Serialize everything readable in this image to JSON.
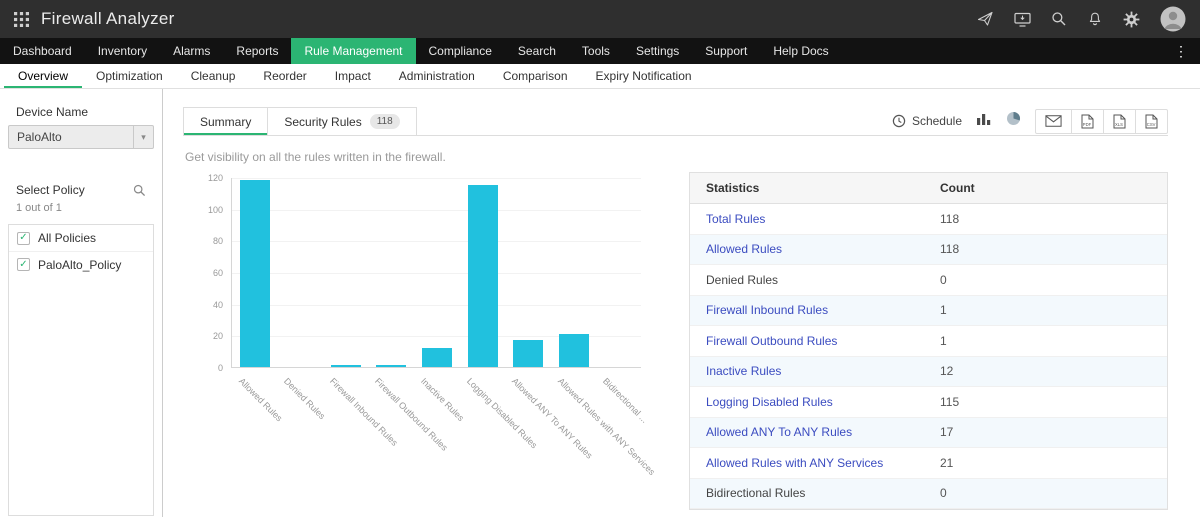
{
  "header": {
    "title": "Firewall Analyzer",
    "icons": [
      "app-launcher",
      "paper-plane",
      "screen-share",
      "search",
      "bell",
      "gear",
      "avatar"
    ]
  },
  "nav": {
    "items": [
      {
        "label": "Dashboard",
        "active": false
      },
      {
        "label": "Inventory",
        "active": false
      },
      {
        "label": "Alarms",
        "active": false
      },
      {
        "label": "Reports",
        "active": false
      },
      {
        "label": "Rule Management",
        "active": true
      },
      {
        "label": "Compliance",
        "active": false
      },
      {
        "label": "Search",
        "active": false
      },
      {
        "label": "Tools",
        "active": false
      },
      {
        "label": "Settings",
        "active": false
      },
      {
        "label": "Support",
        "active": false
      },
      {
        "label": "Help Docs",
        "active": false
      }
    ],
    "more_icon": "⋮"
  },
  "subnav": {
    "items": [
      {
        "label": "Overview",
        "active": true
      },
      {
        "label": "Optimization",
        "active": false
      },
      {
        "label": "Cleanup",
        "active": false
      },
      {
        "label": "Reorder",
        "active": false
      },
      {
        "label": "Impact",
        "active": false
      },
      {
        "label": "Administration",
        "active": false
      },
      {
        "label": "Comparison",
        "active": false
      },
      {
        "label": "Expiry Notification",
        "active": false
      }
    ]
  },
  "sidebar": {
    "device_label": "Device Name",
    "device_value": "PaloAlto",
    "policy_label": "Select Policy",
    "policy_count": "1 out of 1",
    "policies": [
      {
        "label": "All Policies",
        "checked": true
      },
      {
        "label": "PaloAlto_Policy",
        "checked": true
      }
    ]
  },
  "tabs": {
    "summary": "Summary",
    "security_rules": "Security Rules",
    "security_rules_badge": "118",
    "schedule": "Schedule",
    "view_icons": [
      "bar-chart",
      "pie-chart"
    ],
    "export_icons": [
      "mail",
      "pdf",
      "excel",
      "csv"
    ]
  },
  "main": {
    "subtitle": "Get visibility on all the rules written in the firewall."
  },
  "chart_data": {
    "type": "bar",
    "title": "",
    "xlabel": "",
    "ylabel": "",
    "categories": [
      "Allowed Rules",
      "Denied Rules",
      "Firewall Inbound Rules",
      "Firewall Outbound Rules",
      "Inactive Rules",
      "Logging Disabled Rules",
      "Allowed ANY To ANY Rules",
      "Allowed Rules with ANY Services",
      "Bidirectional ..."
    ],
    "values": [
      118,
      0,
      1,
      1,
      12,
      115,
      17,
      21,
      0
    ],
    "ylim": [
      0,
      120
    ],
    "yticks": [
      0,
      20,
      40,
      60,
      80,
      100,
      120
    ],
    "bar_color": "#21c1de",
    "grid": true,
    "legend": "none"
  },
  "stats_table": {
    "headers": [
      "Statistics",
      "Count"
    ],
    "rows": [
      {
        "label": "Total Rules",
        "count": 118,
        "link": true
      },
      {
        "label": "Allowed Rules",
        "count": 118,
        "link": true
      },
      {
        "label": "Denied Rules",
        "count": 0,
        "link": false
      },
      {
        "label": "Firewall Inbound Rules",
        "count": 1,
        "link": true
      },
      {
        "label": "Firewall Outbound Rules",
        "count": 1,
        "link": true
      },
      {
        "label": "Inactive Rules",
        "count": 12,
        "link": true
      },
      {
        "label": "Logging Disabled Rules",
        "count": 115,
        "link": true
      },
      {
        "label": "Allowed ANY To ANY Rules",
        "count": 17,
        "link": true
      },
      {
        "label": "Allowed Rules with ANY Services",
        "count": 21,
        "link": true
      },
      {
        "label": "Bidirectional Rules",
        "count": 0,
        "link": false
      }
    ]
  },
  "colors": {
    "accent_green": "#2bb573",
    "link_blue": "#3b4cc0",
    "bar_cyan": "#21c1de",
    "topbar_bg": "#2f2f2f",
    "nav_bg": "#121212",
    "alt_row_bg": "#f3f9fd"
  }
}
